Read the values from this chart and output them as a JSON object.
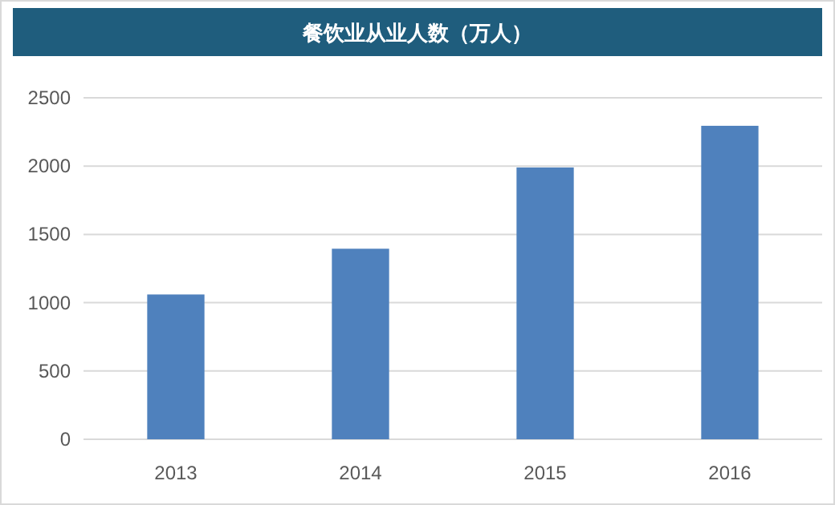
{
  "chart_data": {
    "type": "bar",
    "title": "餐饮业从业人数（万人）",
    "categories": [
      "2013",
      "2014",
      "2015",
      "2016"
    ],
    "values": [
      1060,
      1395,
      1990,
      2295
    ],
    "color": "#4f81bd",
    "ylim": [
      0,
      2500
    ],
    "yticks": [
      0,
      500,
      1000,
      1500,
      2000,
      2500
    ],
    "grid": "y"
  }
}
